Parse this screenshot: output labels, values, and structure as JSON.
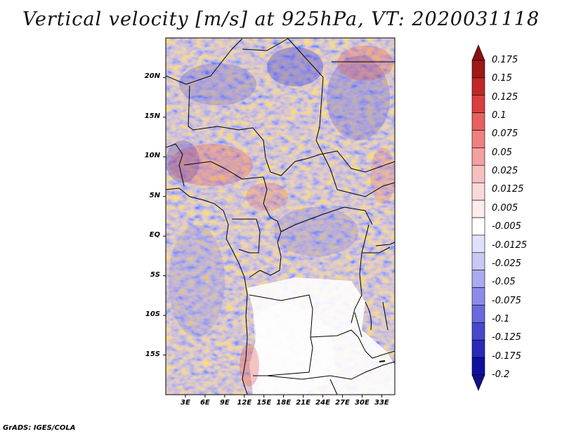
{
  "title": "Vertical velocity [m/s] at 925hPa, VT: 2020031118",
  "footer": "GrADS: IGES/COLA",
  "map": {
    "lon_range": [
      0,
      35
    ],
    "lat_range": [
      -20,
      25
    ],
    "lat_ticks": [
      "20N",
      "15N",
      "10N",
      "5N",
      "EQ",
      "5S",
      "10S",
      "15S"
    ],
    "lon_ticks": [
      "3E",
      "6E",
      "9E",
      "12E",
      "15E",
      "18E",
      "21E",
      "24E",
      "27E",
      "30E",
      "33E"
    ]
  },
  "colorbar": {
    "labels": [
      "0.175",
      "0.15",
      "0.125",
      "0.1",
      "0.075",
      "0.05",
      "0.025",
      "0.0125",
      "0.005",
      "-0.005",
      "-0.0125",
      "-0.025",
      "-0.05",
      "-0.075",
      "-0.1",
      "-0.125",
      "-0.175",
      "-0.2"
    ],
    "colors": [
      "#a01818",
      "#c02828",
      "#d84040",
      "#e86060",
      "#ee8080",
      "#f2a0a0",
      "#f6c0c0",
      "#f9dada",
      "#fcecec",
      "#ffffff",
      "#e0e0fa",
      "#c8c8f5",
      "#aaaaf0",
      "#8c8ce8",
      "#6a6adc",
      "#4848cc",
      "#2a2ab8",
      "#1010a0"
    ],
    "cap_top_color": "#8b1010",
    "cap_bottom_color": "#10108a"
  }
}
